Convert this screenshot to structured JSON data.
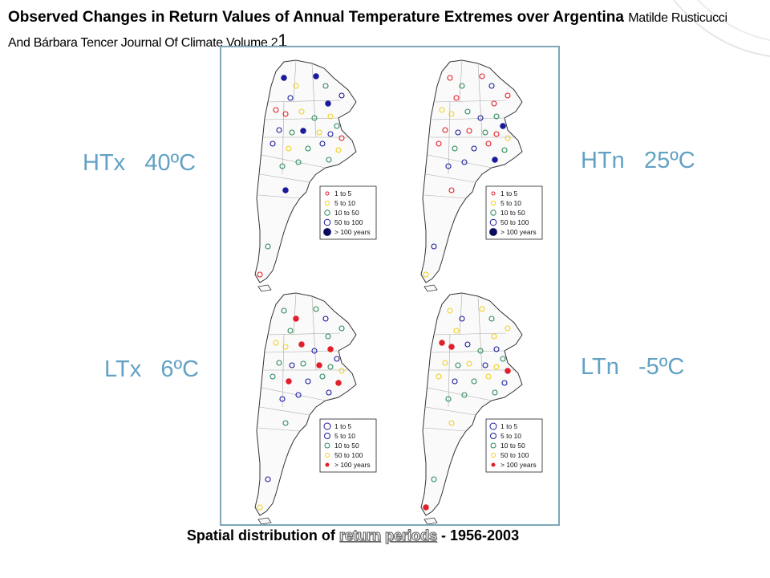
{
  "title": {
    "main": "Observed Changes in Return Values of Annual Temperature Extremes over Argentina",
    "authors": "Matilde Rusticucci And Bárbara Tencer Journal Of Climate Volume 2",
    "trailing": "1"
  },
  "labels": {
    "htx": "HTx   40ºC",
    "htn": "HTn   25ºC",
    "ltx": "LTx   6ºC",
    "ltn": "LTn   -5ºC"
  },
  "legend_high": {
    "entries": [
      "1  to  5",
      "5  to  10",
      "10  to  50",
      "50  to  100",
      "> 100 years"
    ],
    "colors": [
      "#e0202a",
      "#f0d020",
      "#2a8a5a",
      "#1a1a9a",
      "#0a0a60"
    ]
  },
  "legend_low": {
    "entries": [
      "1  to  5",
      "5  to  10",
      "10  to  50",
      "50  to  100",
      "> 100 years"
    ],
    "colors": [
      "#1a1a9a",
      "#1a1a9a",
      "#2a8a5a",
      "#f0d020",
      "#e0202a"
    ]
  },
  "caption": {
    "prefix": "Spatial distribution of",
    "link1": "return",
    "link2": "periods",
    "suffix": "-  1956-2003"
  }
}
